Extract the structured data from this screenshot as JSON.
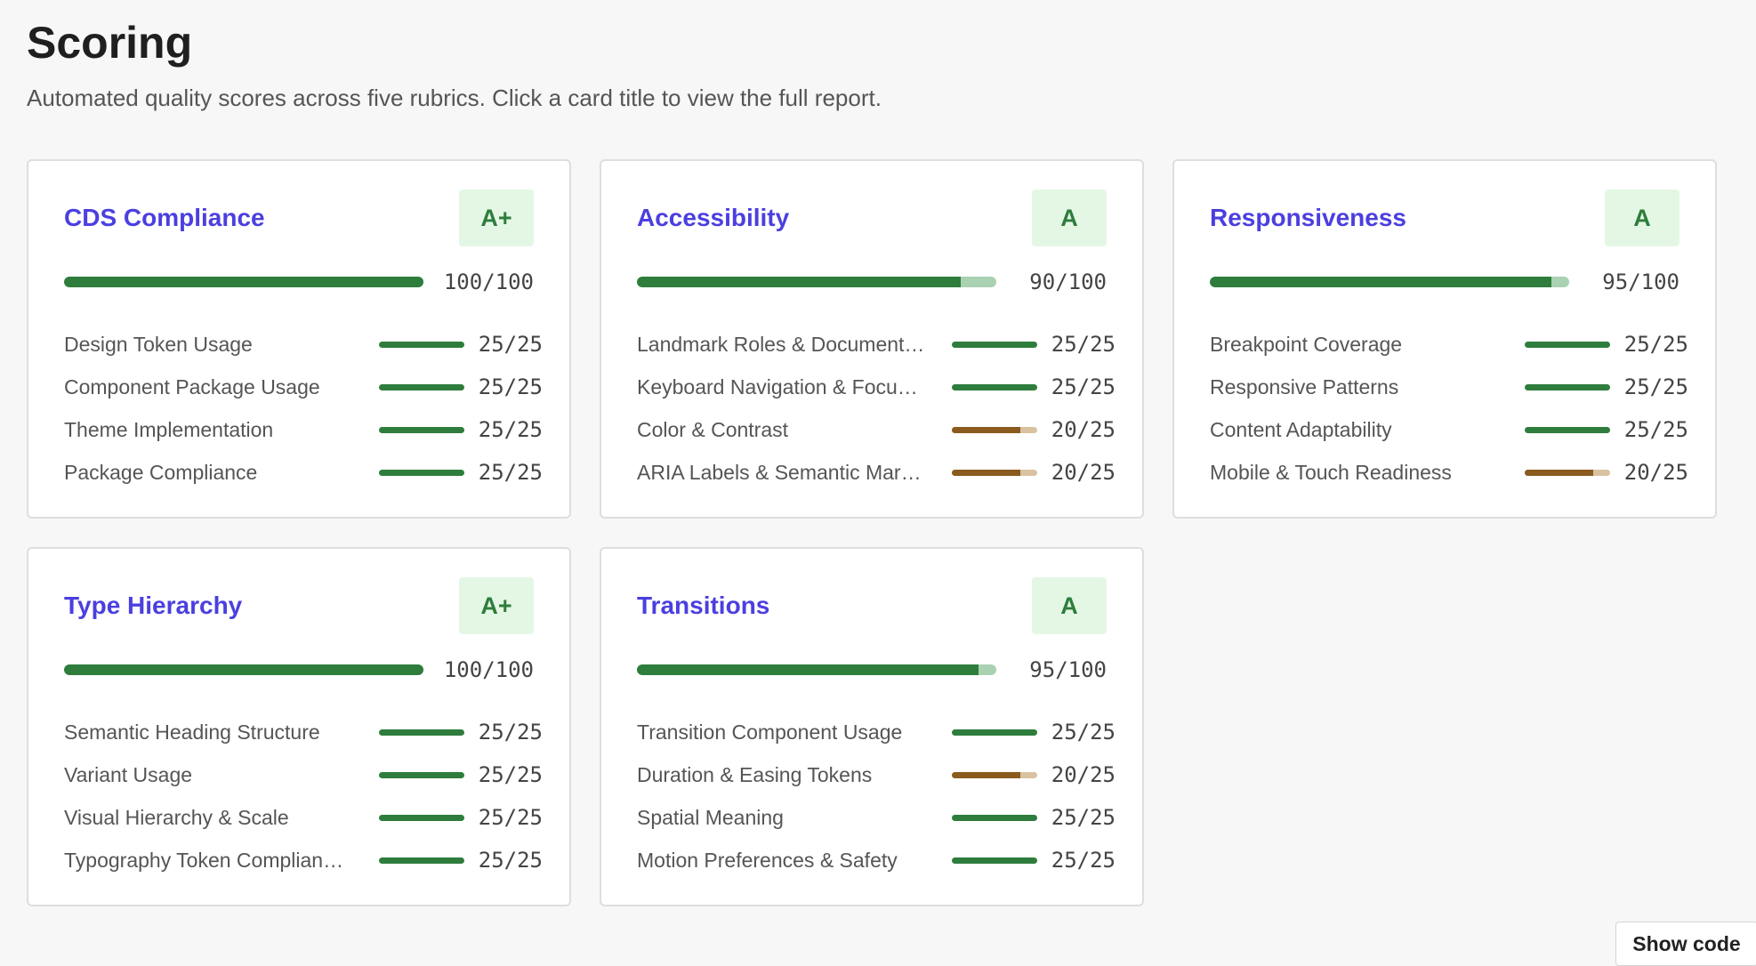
{
  "page": {
    "title": "Scoring",
    "subtitle": "Automated quality scores across five rubrics. Click a card title to view the full report."
  },
  "colors": {
    "accent": "#4b3fe0",
    "good": "#2e7d3c",
    "good_track": "#a9d1b2",
    "warn": "#8a5a1e",
    "warn_track": "#d9c2a0",
    "grade_bg": "#e4f7e5"
  },
  "cards": [
    {
      "title": "CDS Compliance",
      "grade": "A+",
      "score": 100,
      "total_text": "100/100",
      "criteria": [
        {
          "label": "Design Token Usage",
          "score": 25,
          "value": "25/25"
        },
        {
          "label": "Component Package Usage",
          "score": 25,
          "value": "25/25"
        },
        {
          "label": "Theme Implementation",
          "score": 25,
          "value": "25/25"
        },
        {
          "label": "Package Compliance",
          "score": 25,
          "value": "25/25"
        }
      ]
    },
    {
      "title": "Accessibility",
      "grade": "A",
      "score": 90,
      "total_text": "90/100",
      "criteria": [
        {
          "label": "Landmark Roles & Document…",
          "score": 25,
          "value": "25/25"
        },
        {
          "label": "Keyboard Navigation & Focu…",
          "score": 25,
          "value": "25/25"
        },
        {
          "label": "Color & Contrast",
          "score": 20,
          "value": "20/25"
        },
        {
          "label": "ARIA Labels & Semantic Mar…",
          "score": 20,
          "value": "20/25"
        }
      ]
    },
    {
      "title": "Responsiveness",
      "grade": "A",
      "score": 95,
      "total_text": "95/100",
      "criteria": [
        {
          "label": "Breakpoint Coverage",
          "score": 25,
          "value": "25/25"
        },
        {
          "label": "Responsive Patterns",
          "score": 25,
          "value": "25/25"
        },
        {
          "label": "Content Adaptability",
          "score": 25,
          "value": "25/25"
        },
        {
          "label": "Mobile & Touch Readiness",
          "score": 20,
          "value": "20/25"
        }
      ]
    },
    {
      "title": "Type Hierarchy",
      "grade": "A+",
      "score": 100,
      "total_text": "100/100",
      "criteria": [
        {
          "label": "Semantic Heading Structure",
          "score": 25,
          "value": "25/25"
        },
        {
          "label": "Variant Usage",
          "score": 25,
          "value": "25/25"
        },
        {
          "label": "Visual Hierarchy & Scale",
          "score": 25,
          "value": "25/25"
        },
        {
          "label": "Typography Token Complian…",
          "score": 25,
          "value": "25/25"
        }
      ]
    },
    {
      "title": "Transitions",
      "grade": "A",
      "score": 95,
      "total_text": "95/100",
      "criteria": [
        {
          "label": "Transition Component Usage",
          "score": 25,
          "value": "25/25"
        },
        {
          "label": "Duration & Easing Tokens",
          "score": 20,
          "value": "20/25"
        },
        {
          "label": "Spatial Meaning",
          "score": 25,
          "value": "25/25"
        },
        {
          "label": "Motion Preferences & Safety",
          "score": 25,
          "value": "25/25"
        }
      ]
    }
  ],
  "show_code_label": "Show code"
}
